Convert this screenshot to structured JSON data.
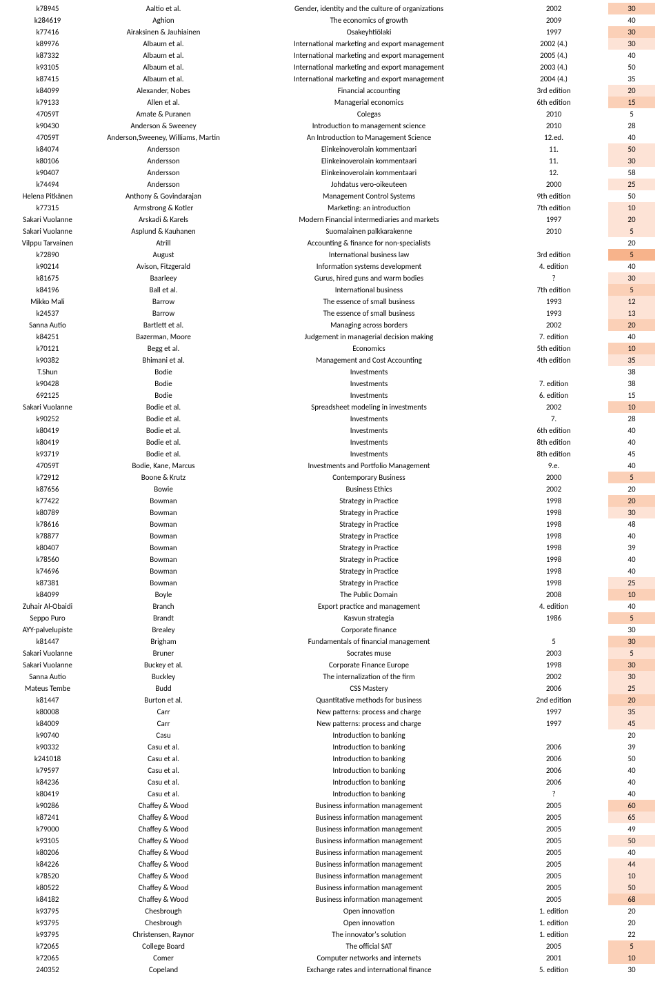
{
  "columns": [
    {
      "key": "id",
      "class": "col-id"
    },
    {
      "key": "author",
      "class": "col-auth"
    },
    {
      "key": "title",
      "class": "col-title"
    },
    {
      "key": "edition",
      "class": "col-ed"
    },
    {
      "key": "price",
      "class": "col-price"
    }
  ],
  "colors": {
    "text": "#000000",
    "bg": "#ffffff",
    "shade_none": "#ffffff",
    "shade_light": "#fde3d6",
    "shade_mid": "#fbd0b7",
    "shade_deep": "#f7b38b"
  },
  "fonts": {
    "family": "Calibri, Arial, sans-serif",
    "size_pt": 11
  },
  "rows": [
    {
      "id": "k78945",
      "author": "Aaltio et al.",
      "title": "Gender, identity and the culture of organizations",
      "edition": "2002",
      "price": "30",
      "shade": "mid"
    },
    {
      "id": "k284619",
      "author": "Aghion",
      "title": "The economics of growth",
      "edition": "2009",
      "price": "40",
      "shade": "none"
    },
    {
      "id": "k77416",
      "author": "Airaksinen & Jauhiainen",
      "title": "Osakeyhtiölaki",
      "edition": "1997",
      "price": "30",
      "shade": "mid"
    },
    {
      "id": "k89976",
      "author": "Albaum et al.",
      "title": "International marketing and export management",
      "edition": "2002 (4.)",
      "price": "30",
      "shade": "light"
    },
    {
      "id": "k87332",
      "author": "Albaum et al.",
      "title": "International marketing and export management",
      "edition": "2005 (4.)",
      "price": "40",
      "shade": "none"
    },
    {
      "id": "k93105",
      "author": "Albaum et al.",
      "title": "International marketing and export management",
      "edition": "2003 (4.)",
      "price": "50",
      "shade": "none"
    },
    {
      "id": "k87415",
      "author": "Albaum et al.",
      "title": "International marketing and export management",
      "edition": "2004 (4.)",
      "price": "35",
      "shade": "none"
    },
    {
      "id": "k84099",
      "author": "Alexander, Nobes",
      "title": "Financial accounting",
      "edition": "3rd edition",
      "price": "20",
      "shade": "light"
    },
    {
      "id": "k79133",
      "author": "Allen et al.",
      "title": "Managerial economics",
      "edition": "6th edition",
      "price": "15",
      "shade": "mid"
    },
    {
      "id": "47059T",
      "author": "Amate & Puranen",
      "title": "Colegas",
      "edition": "2010",
      "price": "5",
      "shade": "none"
    },
    {
      "id": "k90430",
      "author": "Anderson & Sweeney",
      "title": "Introduction to management science",
      "edition": "2010",
      "price": "28",
      "shade": "none"
    },
    {
      "id": "47059T",
      "author": "Anderson,Sweeney, Williams, Martin",
      "title": "An Introduction to Management Science",
      "edition": "12.ed.",
      "price": "40",
      "shade": "none"
    },
    {
      "id": "k84074",
      "author": "Andersson",
      "title": "Elinkeinoverolain kommentaari",
      "edition": "11.",
      "price": "50",
      "shade": "light"
    },
    {
      "id": "k80106",
      "author": "Andersson",
      "title": "Elinkeinoverolain kommentaari",
      "edition": "11.",
      "price": "30",
      "shade": "light"
    },
    {
      "id": "k90407",
      "author": "Andersson",
      "title": "Elinkeinoverolain kommentaari",
      "edition": "12.",
      "price": "58",
      "shade": "none"
    },
    {
      "id": "k74494",
      "author": "Andersson",
      "title": "Johdatus vero-oikeuteen",
      "edition": "2000",
      "price": "25",
      "shade": "light"
    },
    {
      "id": "Helena Pitkänen",
      "author": "Anthony & Govindarajan",
      "title": "Management Control Systems",
      "edition": "9th edition",
      "price": "50",
      "shade": "none"
    },
    {
      "id": "k77315",
      "author": "Armstrong & Kotler",
      "title": "Marketing: an introduction",
      "edition": "7th edition",
      "price": "10",
      "shade": "light"
    },
    {
      "id": "Sakari Vuolanne",
      "author": "Arskadi & Karels",
      "title": "Modern Financial intermediaries and markets",
      "edition": "1997",
      "price": "20",
      "shade": "light"
    },
    {
      "id": "Sakari Vuolanne",
      "author": "Asplund & Kauhanen",
      "title": "Suomalainen palkkarakenne",
      "edition": "2010",
      "price": "5",
      "shade": "light"
    },
    {
      "id": "Vilppu Tarvainen",
      "author": "Atrill",
      "title": "Accounting & finance for non-specialists",
      "edition": "",
      "price": "20",
      "shade": "none"
    },
    {
      "id": "k72890",
      "author": "August",
      "title": "International business law",
      "edition": "3rd edition",
      "price": "5",
      "shade": "deep"
    },
    {
      "id": "k90214",
      "author": "Avison, Fitzgerald",
      "title": "Information systems development",
      "edition": "4. edition",
      "price": "40",
      "shade": "none"
    },
    {
      "id": "k81675",
      "author": "Baarleey",
      "title": "Gurus, hired guns and warm bodies",
      "edition": "?",
      "price": "30",
      "shade": "light"
    },
    {
      "id": "k84196",
      "author": "Ball et al.",
      "title": "International business",
      "edition": "7th edition",
      "price": "5",
      "shade": "mid"
    },
    {
      "id": "Mikko Mali",
      "author": "Barrow",
      "title": "The essence of small business",
      "edition": "1993",
      "price": "12",
      "shade": "light"
    },
    {
      "id": "k24537",
      "author": "Barrow",
      "title": "The essence of small business",
      "edition": "1993",
      "price": "13",
      "shade": "light"
    },
    {
      "id": "Sanna Autio",
      "author": "Bartlett et al.",
      "title": "Managing across borders",
      "edition": "2002",
      "price": "20",
      "shade": "mid"
    },
    {
      "id": "k84251",
      "author": "Bazerman, Moore",
      "title": "Judgement in managerial decision making",
      "edition": "7. edition",
      "price": "40",
      "shade": "none"
    },
    {
      "id": "k70121",
      "author": "Begg et al.",
      "title": "Economics",
      "edition": "5th edition",
      "price": "10",
      "shade": "mid"
    },
    {
      "id": "k90382",
      "author": "Bhimani et al.",
      "title": "Management and Cost Accounting",
      "edition": "4th edition",
      "price": "35",
      "shade": "light"
    },
    {
      "id": "T.Shun",
      "author": "Bodie",
      "title": "Investments",
      "edition": "",
      "price": "38",
      "shade": "none"
    },
    {
      "id": "k90428",
      "author": "Bodie",
      "title": "Investments",
      "edition": "7. edition",
      "price": "38",
      "shade": "none"
    },
    {
      "id": "692125",
      "author": "Bodie",
      "title": "Investments",
      "edition": "6. edition",
      "price": "15",
      "shade": "none"
    },
    {
      "id": "Sakari Vuolanne",
      "author": "Bodie et al.",
      "title": "Spreadsheet modeling in investments",
      "edition": "2002",
      "price": "10",
      "shade": "mid"
    },
    {
      "id": "k90252",
      "author": "Bodie et al.",
      "title": "Investments",
      "edition": "7.",
      "price": "28",
      "shade": "none"
    },
    {
      "id": "k80419",
      "author": "Bodie et al.",
      "title": "Investments",
      "edition": "6th edition",
      "price": "40",
      "shade": "none"
    },
    {
      "id": "k80419",
      "author": "Bodie et al.",
      "title": "Investments",
      "edition": "8th edition",
      "price": "40",
      "shade": "none"
    },
    {
      "id": "k93719",
      "author": "Bodie et al.",
      "title": "Investments",
      "edition": "8th edition",
      "price": "45",
      "shade": "none"
    },
    {
      "id": "47059T",
      "author": "Bodie, Kane, Marcus",
      "title": "Investments and Portfolio Management",
      "edition": "9.e.",
      "price": "40",
      "shade": "none"
    },
    {
      "id": "k72912",
      "author": "Boone & Krutz",
      "title": "Contemporary Business",
      "edition": "2000",
      "price": "5",
      "shade": "mid"
    },
    {
      "id": "k87656",
      "author": "Bowie",
      "title": "Business Ethics",
      "edition": "2002",
      "price": "20",
      "shade": "none"
    },
    {
      "id": "k77422",
      "author": "Bowman",
      "title": "Strategy in Practice",
      "edition": "1998",
      "price": "20",
      "shade": "mid"
    },
    {
      "id": "k80789",
      "author": "Bowman",
      "title": "Strategy in Practice",
      "edition": "1998",
      "price": "30",
      "shade": "light"
    },
    {
      "id": "k78616",
      "author": "Bowman",
      "title": "Strategy in Practice",
      "edition": "1998",
      "price": "48",
      "shade": "none"
    },
    {
      "id": "k78877",
      "author": "Bowman",
      "title": "Strategy in Practice",
      "edition": "1998",
      "price": "40",
      "shade": "none"
    },
    {
      "id": "k80407",
      "author": "Bowman",
      "title": "Strategy in Practice",
      "edition": "1998",
      "price": "39",
      "shade": "none"
    },
    {
      "id": "k78560",
      "author": "Bowman",
      "title": "Strategy in Practice",
      "edition": "1998",
      "price": "40",
      "shade": "none"
    },
    {
      "id": "k74696",
      "author": "Bowman",
      "title": "Strategy in Practice",
      "edition": "1998",
      "price": "40",
      "shade": "none"
    },
    {
      "id": "k87381",
      "author": "Bowman",
      "title": "Strategy in Practice",
      "edition": "1998",
      "price": "25",
      "shade": "light"
    },
    {
      "id": "k84099",
      "author": "Boyle",
      "title": "The Public Domain",
      "edition": "2008",
      "price": "10",
      "shade": "mid"
    },
    {
      "id": "Zuhair Al-Obaidi",
      "author": "Branch",
      "title": "Export practice and management",
      "edition": "4. edition",
      "price": "40",
      "shade": "none"
    },
    {
      "id": "Seppo Puro",
      "author": "Brandt",
      "title": "Kasvun strategia",
      "edition": "1986",
      "price": "5",
      "shade": "mid"
    },
    {
      "id": "AYY-palvelupiste",
      "author": "Brealey",
      "title": "Corporate finance",
      "edition": "",
      "price": "30",
      "shade": "none"
    },
    {
      "id": "k81447",
      "author": "Brigham",
      "title": "Fundamentals of financial management",
      "edition": "5",
      "price": "30",
      "shade": "mid"
    },
    {
      "id": "Sakari Vuolanne",
      "author": "Bruner",
      "title": "Socrates muse",
      "edition": "2003",
      "price": "5",
      "shade": "light"
    },
    {
      "id": "Sakari Vuolanne",
      "author": "Buckey et al.",
      "title": "Corporate Finance Europe",
      "edition": "1998",
      "price": "30",
      "shade": "mid"
    },
    {
      "id": "Sanna Autio",
      "author": "Buckley",
      "title": "The internalization of the firm",
      "edition": "2002",
      "price": "30",
      "shade": "light"
    },
    {
      "id": "Mateus Tembe",
      "author": "Budd",
      "title": "CSS Mastery",
      "edition": "2006",
      "price": "25",
      "shade": "light"
    },
    {
      "id": "k81447",
      "author": "Burton et al.",
      "title": "Quantitative methods for business",
      "edition": "2nd edition",
      "price": "20",
      "shade": "mid"
    },
    {
      "id": "k80008",
      "author": "Carr",
      "title": "New patterns: process and charge",
      "edition": "1997",
      "price": "35",
      "shade": "light"
    },
    {
      "id": "k84009",
      "author": "Carr",
      "title": "New patterns: process and charge",
      "edition": "1997",
      "price": "45",
      "shade": "light"
    },
    {
      "id": "k90740",
      "author": "Casu",
      "title": "Introduction to banking",
      "edition": "",
      "price": "20",
      "shade": "none"
    },
    {
      "id": "k90332",
      "author": "Casu et al.",
      "title": "Introduction to banking",
      "edition": "2006",
      "price": "39",
      "shade": "none"
    },
    {
      "id": "k241018",
      "author": "Casu et al.",
      "title": "Introduction to banking",
      "edition": "2006",
      "price": "50",
      "shade": "none"
    },
    {
      "id": "k79597",
      "author": "Casu et al.",
      "title": "Introduction to banking",
      "edition": "2006",
      "price": "40",
      "shade": "none"
    },
    {
      "id": "k84236",
      "author": "Casu et al.",
      "title": "Introduction to banking",
      "edition": "2006",
      "price": "40",
      "shade": "none"
    },
    {
      "id": "k80419",
      "author": "Casu et al.",
      "title": "Introduction to banking",
      "edition": "?",
      "price": "40",
      "shade": "none"
    },
    {
      "id": "k90286",
      "author": "Chaffey & Wood",
      "title": "Business information management",
      "edition": "2005",
      "price": "60",
      "shade": "mid"
    },
    {
      "id": "k87241",
      "author": "Chaffey & Wood",
      "title": "Business information management",
      "edition": "2005",
      "price": "65",
      "shade": "light"
    },
    {
      "id": "k79000",
      "author": "Chaffey & Wood",
      "title": "Business information management",
      "edition": "2005",
      "price": "49",
      "shade": "none"
    },
    {
      "id": "k93105",
      "author": "Chaffey & Wood",
      "title": "Business information management",
      "edition": "2005",
      "price": "50",
      "shade": "light"
    },
    {
      "id": "k80206",
      "author": "Chaffey & Wood",
      "title": "Business information management",
      "edition": "2005",
      "price": "40",
      "shade": "none"
    },
    {
      "id": "k84226",
      "author": "Chaffey & Wood",
      "title": "Business information management",
      "edition": "2005",
      "price": "44",
      "shade": "light"
    },
    {
      "id": "k78520",
      "author": "Chaffey & Wood",
      "title": "Business information management",
      "edition": "2005",
      "price": "10",
      "shade": "light"
    },
    {
      "id": "k80522",
      "author": "Chaffey & Wood",
      "title": "Business information management",
      "edition": "2005",
      "price": "50",
      "shade": "light"
    },
    {
      "id": "k84182",
      "author": "Chaffey & Wood",
      "title": "Business information management",
      "edition": "2005",
      "price": "68",
      "shade": "mid"
    },
    {
      "id": "k93795",
      "author": "Chesbrough",
      "title": "Open innovation",
      "edition": "1. edition",
      "price": "20",
      "shade": "none"
    },
    {
      "id": "k93795",
      "author": "Chesbrough",
      "title": "Open innovation",
      "edition": "1. edition",
      "price": "20",
      "shade": "none"
    },
    {
      "id": "k93795",
      "author": "Christensen, Raynor",
      "title": "The innovator's solution",
      "edition": "1. edition",
      "price": "22",
      "shade": "none"
    },
    {
      "id": "k72065",
      "author": "College Board",
      "title": "The official SAT",
      "edition": "2005",
      "price": "5",
      "shade": "mid"
    },
    {
      "id": "k72065",
      "author": "Comer",
      "title": "Computer networks and internets",
      "edition": "2001",
      "price": "10",
      "shade": "mid"
    },
    {
      "id": "240352",
      "author": "Copeland",
      "title": "Exchange rates and international finance",
      "edition": "5. edition",
      "price": "30",
      "shade": "none"
    }
  ]
}
